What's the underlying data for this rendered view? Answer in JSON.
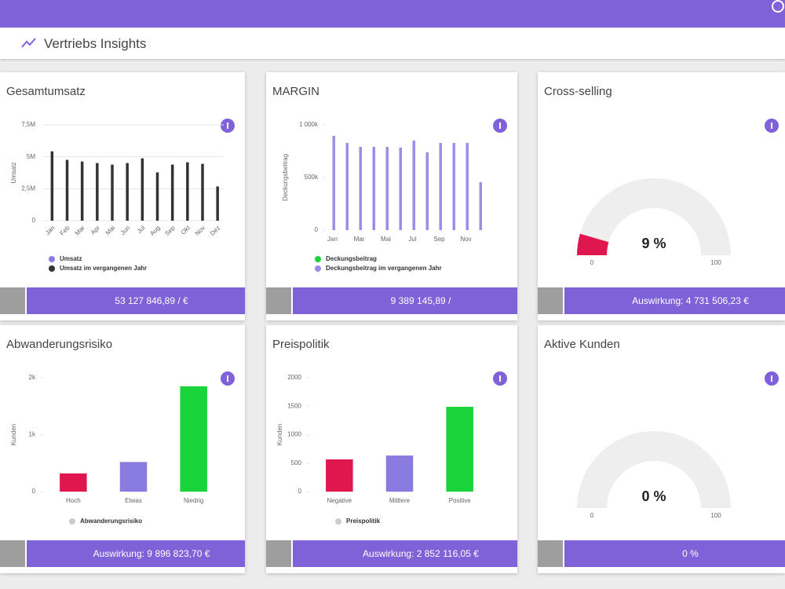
{
  "header": {
    "title": "Vertriebs Insights"
  },
  "cards": [
    {
      "title": "Gesamtumsatz",
      "chart": {
        "type": "bar",
        "ylabel": "Umsatz",
        "categories": [
          "Jan",
          "Feb",
          "Mar",
          "Apr",
          "Mai",
          "Jun",
          "Jul",
          "Aug",
          "Sep",
          "Okt",
          "Nov",
          "Dez"
        ],
        "series": [
          {
            "name": "Umsatz",
            "color": "#8a7be0",
            "values": [
              0,
              0,
              0,
              0,
              0,
              0,
              0,
              0,
              0,
              0,
              0,
              0
            ]
          },
          {
            "name": "Umsatz im vergangenen Jahr",
            "color": "#333333",
            "values": [
              5.43,
              4.76,
              4.63,
              4.51,
              4.39,
              4.51,
              4.88,
              3.78,
              4.39,
              4.57,
              4.45,
              2.68
            ]
          }
        ],
        "ylim": [
          0,
          7.5
        ],
        "yticks": [
          0,
          {
            "value": 2.5,
            "label": "2,5M"
          },
          {
            "value": 5,
            "label": "5M"
          },
          {
            "value": 7.5,
            "label": "7,5M"
          }
        ],
        "grid": true
      },
      "footer": "53 127 846,89 / €"
    },
    {
      "title": "MARGIN",
      "chart": {
        "type": "bar",
        "ylabel": "Deckungsbeitrag",
        "categories": [
          "Jan",
          null,
          "Mar",
          null,
          "Mai",
          null,
          "Jul",
          null,
          "Sep",
          null,
          "Nov",
          null
        ],
        "series": [
          {
            "name": "Deckungsbeitrag",
            "color": "#19d43a",
            "values": [
              0,
              0,
              0,
              0,
              0,
              0,
              0,
              0,
              0,
              0,
              0,
              0
            ]
          },
          {
            "name": "Deckungsbeitrag im vergangenen Jahr",
            "color": "#9a8ee6",
            "values": [
              896,
              828,
              791,
              791,
              791,
              784,
              851,
              739,
              828,
              828,
              828,
              455
            ]
          }
        ],
        "ylim": [
          0,
          1000
        ],
        "yticks": [
          0,
          {
            "value": 500,
            "label": "500k"
          },
          {
            "value": 1000,
            "label": "1 000k"
          }
        ],
        "grid": false
      },
      "footer": "9 389 145,89 /"
    },
    {
      "title": "Cross-selling",
      "chart": {
        "type": "gauge",
        "value": 9,
        "value_label": "9 %",
        "lim": [
          0,
          100
        ],
        "ticks": [
          0,
          100
        ],
        "color": "#e0164f"
      },
      "footer": "Auswirkung: 4 731 506,23 €"
    },
    {
      "title": "Abwanderungsrisiko",
      "chart": {
        "type": "bar",
        "ylabel": "Kunden",
        "categories": [
          "Hoch",
          "Etwas",
          "Niedrig"
        ],
        "series": [
          {
            "name": "Abwanderungsrisiko",
            "color": "#cccccc",
            "values": [
              320,
              520,
              1850
            ]
          }
        ],
        "bar_colors": [
          "#e0164f",
          "#8a7be0",
          "#19d43a"
        ],
        "ylim": [
          0,
          2000
        ],
        "yticks": [
          0,
          {
            "value": 1000,
            "label": "1k"
          },
          {
            "value": 2000,
            "label": "2k"
          }
        ],
        "grid": false
      },
      "footer": "Auswirkung: 9 896 823,70 €"
    },
    {
      "title": "Preispolitik",
      "chart": {
        "type": "bar",
        "ylabel": "Kunden",
        "categories": [
          "Negative",
          "Mittlere",
          "Positive"
        ],
        "series": [
          {
            "name": "Preispolitik",
            "color": "#cccccc",
            "values": [
              566,
              634,
              1490
            ]
          }
        ],
        "bar_colors": [
          "#e0164f",
          "#8a7be0",
          "#19d43a"
        ],
        "ylim": [
          0,
          2000
        ],
        "yticks": [
          0,
          500,
          1000,
          1500,
          2000
        ],
        "grid": false
      },
      "footer": "Auswirkung: 2 852 116,05 €"
    },
    {
      "title": "Aktive Kunden",
      "chart": {
        "type": "gauge",
        "value": 0,
        "value_label": "0 %",
        "lim": [
          0,
          100
        ],
        "ticks": [
          0,
          100
        ],
        "color": "#e0164f"
      },
      "footer": "0 %"
    }
  ]
}
